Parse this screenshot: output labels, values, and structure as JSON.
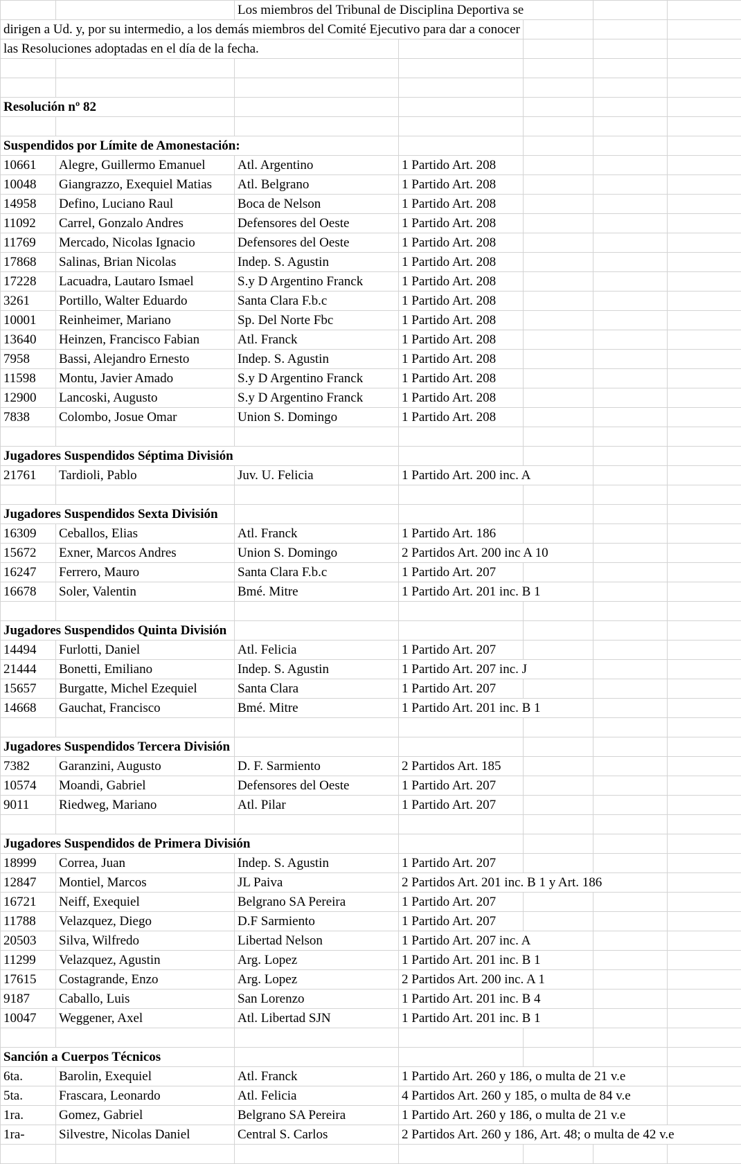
{
  "intro": {
    "line1": "Los miembros del Tribunal de Disciplina Deportiva se",
    "line2": "dirigen a Ud. y, por su intermedio, a los demás miembros del Comité Ejecutivo para dar a conocer",
    "line3": "las Resoluciones adoptadas en el día de la fecha."
  },
  "resolution": "Resolución nº 82",
  "sections": [
    {
      "title": "Suspendidos por Límite de Amonestación:",
      "rows": [
        [
          "10661",
          "Alegre, Guillermo Emanuel",
          "Atl. Argentino",
          "1 Partido Art. 208"
        ],
        [
          "10048",
          "Giangrazzo, Exequiel Matias",
          "Atl. Belgrano",
          "1 Partido Art. 208"
        ],
        [
          "14958",
          "Defino, Luciano Raul",
          "Boca de Nelson",
          "1 Partido Art. 208"
        ],
        [
          "11092",
          "Carrel, Gonzalo Andres",
          "Defensores del Oeste",
          "1 Partido Art. 208"
        ],
        [
          "11769",
          "Mercado, Nicolas Ignacio",
          "Defensores del Oeste",
          "1 Partido Art. 208"
        ],
        [
          "17868",
          "Salinas, Brian Nicolas",
          "Indep. S. Agustin",
          "1 Partido Art. 208"
        ],
        [
          "17228",
          "Lacuadra, Lautaro Ismael",
          "S.y D Argentino Franck",
          "1 Partido Art. 208"
        ],
        [
          "3261",
          "Portillo, Walter Eduardo",
          "Santa Clara F.b.c",
          "1 Partido Art. 208"
        ],
        [
          "10001",
          "Reinheimer, Mariano",
          "Sp. Del Norte Fbc",
          "1 Partido Art. 208"
        ],
        [
          "13640",
          "Heinzen, Francisco Fabian",
          "Atl. Franck",
          "1 Partido Art. 208"
        ],
        [
          "7958",
          "Bassi, Alejandro Ernesto",
          "Indep. S. Agustin",
          "1 Partido Art. 208"
        ],
        [
          "11598",
          "Montu, Javier Amado",
          "S.y D Argentino Franck",
          "1 Partido Art. 208"
        ],
        [
          "12900",
          "Lancoski, Augusto",
          "S.y D Argentino Franck",
          "1 Partido Art. 208"
        ],
        [
          "7838",
          "Colombo, Josue Omar",
          "Union S. Domingo",
          "1 Partido Art. 208"
        ]
      ]
    },
    {
      "title": "Jugadores Suspendidos Séptima División",
      "rows": [
        [
          "21761",
          "Tardioli, Pablo",
          "Juv. U. Felicia",
          "1 Partido Art. 200 inc. A"
        ]
      ]
    },
    {
      "title": "Jugadores Suspendidos Sexta División",
      "rows": [
        [
          "16309",
          "Ceballos, Elias",
          "Atl. Franck",
          "1 Partido Art. 186"
        ],
        [
          "15672",
          "Exner, Marcos Andres",
          "Union S. Domingo",
          "2 Partidos Art. 200 inc A 10"
        ],
        [
          "16247",
          "Ferrero, Mauro",
          "Santa Clara F.b.c",
          "1 Partido Art. 207"
        ],
        [
          "16678",
          "Soler, Valentin",
          "Bmé. Mitre",
          "1 Partido Art. 201 inc. B 1"
        ]
      ]
    },
    {
      "title": "Jugadores Suspendidos Quinta División",
      "rows": [
        [
          "14494",
          "Furlotti, Daniel",
          "Atl. Felicia",
          "1 Partido Art. 207"
        ],
        [
          "21444",
          "Bonetti, Emiliano",
          "Indep. S. Agustin",
          "1 Partido Art. 207 inc. J"
        ],
        [
          "15657",
          "Burgatte, Michel Ezequiel",
          "Santa Clara",
          "1 Partido Art. 207"
        ],
        [
          "14668",
          "Gauchat, Francisco",
          "Bmé. Mitre",
          "1 Partido Art. 201 inc. B 1"
        ]
      ]
    },
    {
      "title": "Jugadores Suspendidos Tercera División",
      "rows": [
        [
          "7382",
          "Garanzini, Augusto",
          "D. F. Sarmiento",
          "2 Partidos Art. 185"
        ],
        [
          "10574",
          "Moandi, Gabriel",
          "Defensores del Oeste",
          "1 Partido Art. 207"
        ],
        [
          "9011",
          "Riedweg, Mariano",
          "Atl. Pilar",
          "1 Partido Art. 207"
        ]
      ]
    },
    {
      "title": "Jugadores Suspendidos de Primera División",
      "rows": [
        [
          "18999",
          "Correa, Juan",
          "Indep. S. Agustin",
          "1 Partido Art. 207"
        ],
        [
          "12847",
          "Montiel, Marcos",
          "JL Paiva",
          "2 Partidos Art. 201 inc. B 1 y Art. 186"
        ],
        [
          "16721",
          "Neiff, Exequiel",
          "Belgrano SA Pereira",
          "1 Partido Art. 207"
        ],
        [
          "11788",
          "Velazquez, Diego",
          "D.F Sarmiento",
          "1 Partido Art. 207"
        ],
        [
          "20503",
          "Silva, Wilfredo",
          "Libertad Nelson",
          "1 Partido Art. 207 inc. A"
        ],
        [
          "11299",
          "Velazquez, Agustin",
          "Arg. Lopez",
          "1 Partido Art. 201 inc. B 1"
        ],
        [
          "17615",
          "Costagrande, Enzo",
          "Arg. Lopez",
          "2 Partidos Art. 200 inc. A 1"
        ],
        [
          "9187",
          "Caballo, Luis",
          "San Lorenzo",
          "1 Partido Art. 201 inc. B 4"
        ],
        [
          "10047",
          "Weggener, Axel",
          "Atl. Libertad SJN",
          "1 Partido Art. 201 inc. B 1"
        ]
      ]
    },
    {
      "title": "Sanción a Cuerpos Técnicos",
      "rows": [
        [
          "6ta.",
          "Barolin, Exequiel",
          "Atl. Franck",
          "1 Partido Art. 260 y 186, o multa de 21 v.e"
        ],
        [
          "5ta.",
          "Frascara, Leonardo",
          "Atl. Felicia",
          "4 Partidos Art. 260 y 185, o multa de 84 v.e"
        ],
        [
          "1ra.",
          "Gomez, Gabriel",
          "Belgrano SA Pereira",
          "1 Partido Art. 260 y 186, o multa de 21 v.e"
        ],
        [
          "1ra-",
          "Silvestre, Nicolas Daniel",
          "Central S. Carlos",
          "2 Partidos Art. 260 y 186, Art. 48; o multa de 42 v.e"
        ]
      ]
    }
  ]
}
